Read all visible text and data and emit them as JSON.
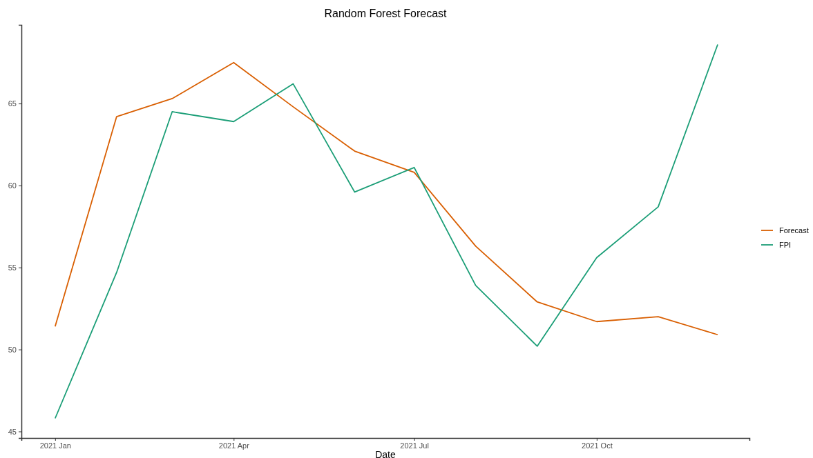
{
  "chart_data": {
    "type": "line",
    "title": "Random Forest Forecast",
    "xlabel": "Date",
    "x": [
      "2021-01",
      "2021-02",
      "2021-03",
      "2021-04",
      "2021-05",
      "2021-06",
      "2021-07",
      "2021-08",
      "2021-09",
      "2021-10",
      "2021-11",
      "2021-12"
    ],
    "series": [
      {
        "name": "Forecast",
        "color": "#d95f02",
        "values": [
          51.4,
          64.2,
          65.3,
          67.5,
          64.8,
          62.1,
          60.8,
          56.3,
          52.9,
          51.7,
          52.0,
          50.9
        ]
      },
      {
        "name": "FPI",
        "color": "#1b9e77",
        "values": [
          45.8,
          54.7,
          64.5,
          63.9,
          66.2,
          59.6,
          61.1,
          53.9,
          50.2,
          55.6,
          58.7,
          68.6
        ]
      }
    ],
    "xlim": [
      "2020-12-15",
      "2021-12-17"
    ],
    "xticks": [
      {
        "value": "2021-01",
        "label": "2021 Jan"
      },
      {
        "value": "2021-04",
        "label": "2021 Apr"
      },
      {
        "value": "2021-07",
        "label": "2021 Jul"
      },
      {
        "value": "2021-10",
        "label": "2021 Oct"
      }
    ],
    "ylim": [
      44.6,
      69.8
    ],
    "yticks": [
      45,
      50,
      55,
      60,
      65
    ],
    "grid": false,
    "legend": "right",
    "line_style": "solid"
  }
}
